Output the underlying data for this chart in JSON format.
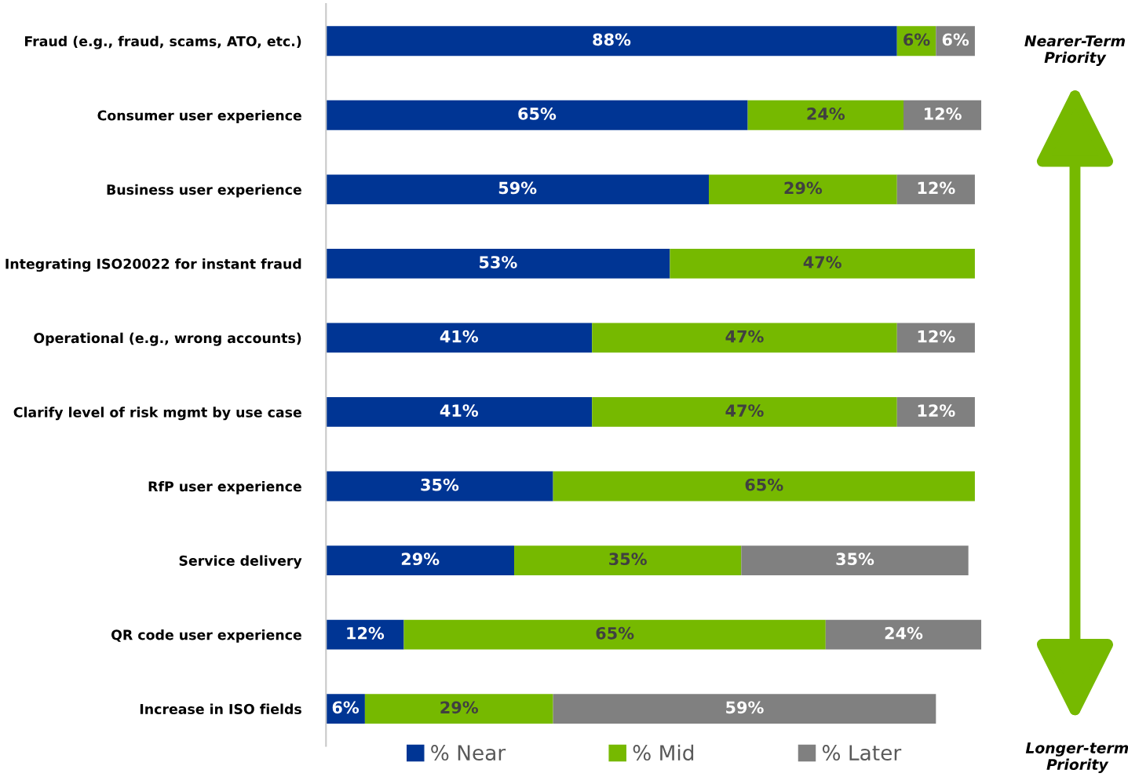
{
  "chart_data": {
    "type": "bar",
    "orientation": "horizontal",
    "stacked": true,
    "tick_labels": "y",
    "grid": false,
    "legend": "bottom",
    "categories": [
      "Fraud (e.g., fraud, scams, ATO, etc.)",
      "Consumer user experience",
      "Business user experience",
      "Integrating ISO20022 for instant fraud",
      "Operational (e.g., wrong accounts)",
      "Clarify level of risk mgmt by use case",
      "RfP user experience",
      "Service delivery",
      "QR code user experience",
      "Increase in ISO fields"
    ],
    "series": [
      {
        "name": "% Near",
        "color": "#003594",
        "values": [
          88,
          65,
          59,
          53,
          41,
          41,
          35,
          29,
          12,
          6
        ],
        "value_labels": [
          "88%",
          "65%",
          "59%",
          "53%",
          "41%",
          "41%",
          "35%",
          "29%",
          "12%",
          "6%"
        ]
      },
      {
        "name": "% Mid",
        "color": "#76b900",
        "values": [
          6,
          24,
          29,
          47,
          47,
          47,
          65,
          35,
          65,
          29
        ],
        "value_labels": [
          "6%",
          "24%",
          "29%",
          "47%",
          "47%",
          "47%",
          "65%",
          "35%",
          "65%",
          "29%"
        ]
      },
      {
        "name": "% Later",
        "color": "#808080",
        "values": [
          6,
          12,
          12,
          null,
          12,
          12,
          null,
          35,
          24,
          59
        ],
        "value_labels": [
          "6%",
          "12%",
          "12%",
          null,
          "12%",
          "12%",
          null,
          "35%",
          "24%",
          "59%"
        ]
      }
    ],
    "annotations": [
      "Nearer-Term Priority",
      "Longer-term Priority"
    ]
  }
}
